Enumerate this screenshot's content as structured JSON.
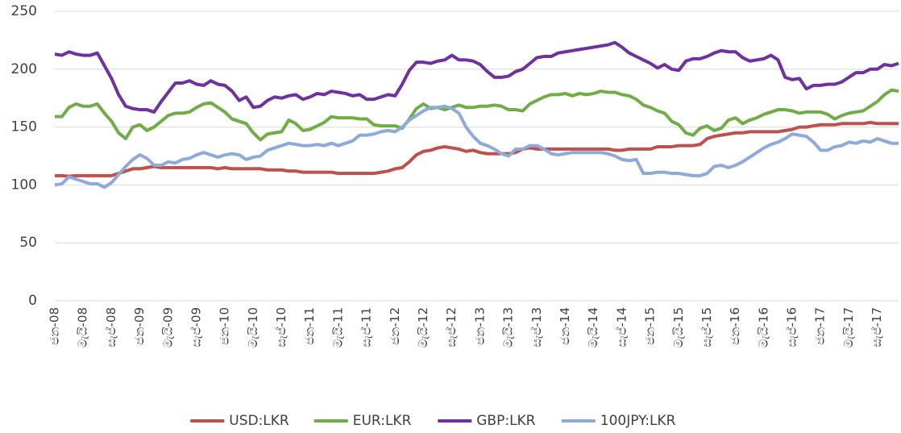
{
  "chart_data": {
    "type": "line",
    "categories": [
      "ජන-08",
      null,
      null,
      null,
      "මැයි-08",
      null,
      null,
      null,
      "සැප්-08",
      null,
      null,
      null,
      "ජන-09",
      null,
      null,
      null,
      "මැයි-09",
      null,
      null,
      null,
      "සැප්-09",
      null,
      null,
      null,
      "ජන-10",
      null,
      null,
      null,
      "මැයි-10",
      null,
      null,
      null,
      "සැප්-10",
      null,
      null,
      null,
      "ජන-11",
      null,
      null,
      null,
      "මැයි-11",
      null,
      null,
      null,
      "සැප්-11",
      null,
      null,
      null,
      "ජන-12",
      null,
      null,
      null,
      "මැයි-12",
      null,
      null,
      null,
      "සැප්-12",
      null,
      null,
      null,
      "ජන-13",
      null,
      null,
      null,
      "මැයි-13",
      null,
      null,
      null,
      "සැප්-13",
      null,
      null,
      null,
      "ජන-14",
      null,
      null,
      null,
      "මැයි-14",
      null,
      null,
      null,
      "සැප්-14",
      null,
      null,
      null,
      "ජන-15",
      null,
      null,
      null,
      "මැයි-15",
      null,
      null,
      null,
      "සැප්-15",
      null,
      null,
      null,
      "ජන-16",
      null,
      null,
      null,
      "මැයි-16",
      null,
      null,
      null,
      "සැප්-16",
      null,
      null,
      null,
      "ජන-17",
      null,
      null,
      null,
      "මැයි-17",
      null,
      null,
      null,
      "සැප්-17",
      null,
      null,
      null
    ],
    "series": [
      {
        "name": "USD:LKR",
        "color": "#c0504d",
        "values": [
          108,
          108,
          107.5,
          108,
          108,
          108,
          108,
          108,
          108,
          110,
          112,
          114,
          114,
          115,
          116,
          115,
          115,
          115,
          115,
          115,
          115,
          115,
          115,
          114,
          115,
          114,
          114,
          114,
          114,
          114,
          113,
          113,
          113,
          112,
          112,
          111,
          111,
          111,
          111,
          111,
          110,
          110,
          110,
          110,
          110,
          110,
          111,
          112,
          114,
          115,
          120,
          126,
          129,
          130,
          132,
          133,
          132,
          131,
          129,
          130,
          128,
          127,
          127,
          127,
          127,
          128,
          131,
          132,
          131,
          131,
          131,
          131,
          131,
          131,
          131,
          131,
          131,
          131,
          131,
          130,
          130,
          131,
          131,
          131,
          131,
          133,
          133,
          133,
          134,
          134,
          134,
          135,
          140,
          142,
          143,
          144,
          145,
          145,
          146,
          146,
          146,
          146,
          146,
          147,
          148,
          150,
          150,
          151,
          152,
          152,
          152,
          153,
          153,
          153,
          153,
          154,
          153,
          153,
          153,
          153
        ]
      },
      {
        "name": "EUR:LKR",
        "color": "#70ad47",
        "values": [
          159,
          159,
          167,
          170,
          168,
          168,
          170,
          162,
          155,
          145,
          140,
          150,
          152,
          147,
          150,
          155,
          160,
          162,
          162,
          163,
          167,
          170,
          171,
          167,
          163,
          157,
          155,
          153,
          145,
          139,
          144,
          145,
          146,
          156,
          153,
          147,
          148,
          151,
          154,
          159,
          158,
          158,
          158,
          157,
          157,
          152,
          151,
          151,
          151,
          149,
          157,
          166,
          170,
          166,
          167,
          165,
          167,
          169,
          167,
          167,
          168,
          168,
          169,
          168,
          165,
          165,
          164,
          170,
          173,
          176,
          178,
          178,
          179,
          177,
          179,
          178,
          179,
          181,
          180,
          180,
          178,
          177,
          174,
          169,
          167,
          164,
          162,
          155,
          152,
          145,
          143,
          149,
          151,
          147,
          149,
          156,
          158,
          153,
          156,
          158,
          161,
          163,
          165,
          165,
          164,
          162,
          163,
          163,
          163,
          161,
          157,
          160,
          162,
          163,
          164,
          168,
          172,
          178,
          182,
          181
        ]
      },
      {
        "name": "GBP:LKR",
        "color": "#7030a0",
        "values": [
          213,
          212,
          215,
          213,
          212,
          212,
          214,
          203,
          192,
          178,
          168,
          166,
          165,
          165,
          163,
          172,
          180,
          188,
          188,
          190,
          187,
          186,
          190,
          187,
          186,
          181,
          173,
          176,
          167,
          168,
          173,
          176,
          175,
          177,
          178,
          174,
          176,
          179,
          178,
          181,
          180,
          179,
          177,
          178,
          174,
          174,
          176,
          178,
          177,
          187,
          199,
          206,
          206,
          205,
          207,
          208,
          212,
          208,
          208,
          207,
          204,
          198,
          193,
          193,
          194,
          198,
          200,
          205,
          210,
          211,
          211,
          214,
          215,
          216,
          217,
          218,
          219,
          220,
          221,
          223,
          219,
          214,
          211,
          208,
          205,
          201,
          204,
          200,
          199,
          207,
          209,
          209,
          211,
          214,
          216,
          215,
          215,
          210,
          207,
          208,
          209,
          212,
          208,
          193,
          191,
          192,
          183,
          186,
          186,
          187,
          187,
          189,
          193,
          197,
          197,
          200,
          200,
          204,
          203,
          205
        ]
      },
      {
        "name": "100JPY:LKR",
        "color": "#8eaadb",
        "values": [
          100,
          101,
          107,
          105,
          103,
          101,
          101,
          98,
          102,
          109,
          116,
          122,
          126,
          123,
          117,
          117,
          120,
          119,
          122,
          123,
          126,
          128,
          126,
          124,
          126,
          127,
          126,
          122,
          124,
          125,
          130,
          132,
          134,
          136,
          135,
          134,
          134,
          135,
          134,
          136,
          134,
          136,
          138,
          143,
          143,
          144,
          146,
          147,
          146,
          150,
          156,
          160,
          164,
          167,
          167,
          168,
          166,
          162,
          150,
          142,
          136,
          134,
          131,
          127,
          125,
          131,
          131,
          134,
          134,
          131,
          127,
          126,
          127,
          128,
          128,
          128,
          128,
          128,
          127,
          125,
          122,
          121,
          122,
          110,
          110,
          111,
          111,
          110,
          110,
          109,
          108,
          108,
          110,
          116,
          117,
          115,
          117,
          120,
          124,
          128,
          132,
          135,
          137,
          140,
          144,
          143,
          142,
          137,
          130,
          130,
          133,
          134,
          137,
          136,
          138,
          137,
          140,
          138,
          136,
          136
        ]
      }
    ],
    "ylim": [
      0,
      250
    ],
    "yticks": [
      0,
      50,
      100,
      150,
      200,
      250
    ],
    "grid": true,
    "legend": "bottom"
  }
}
